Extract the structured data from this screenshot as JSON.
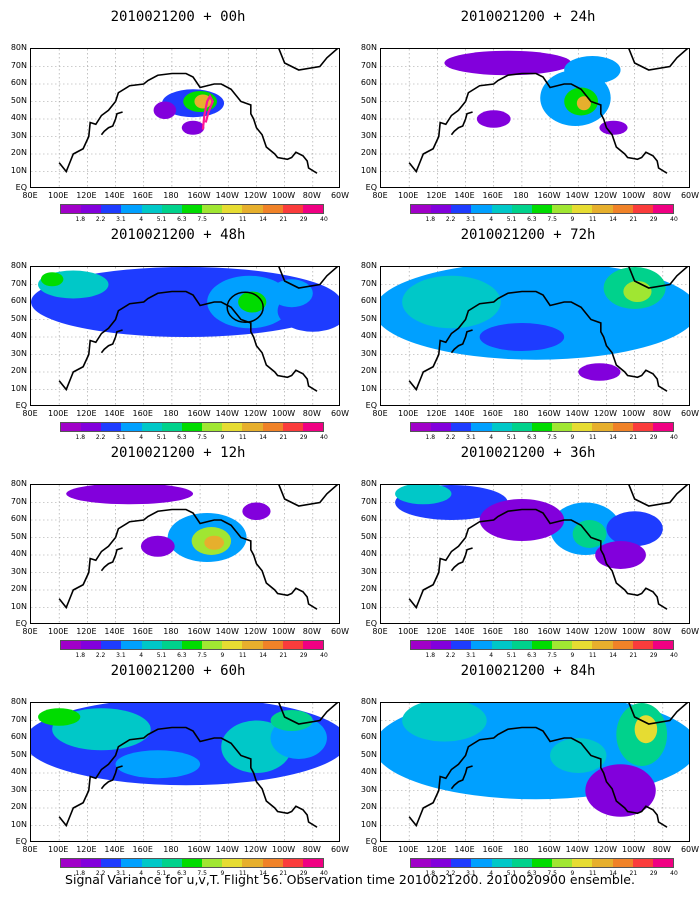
{
  "caption": "Signal Variance for u,v,T. Flight 56. Observation time 2010021200. 2010020900 ensemble.",
  "chart_data": {
    "type": "heatmap",
    "projection": "lat-lon",
    "x_ticks": [
      "80E",
      "100E",
      "120E",
      "140E",
      "160E",
      "180",
      "160W",
      "140W",
      "120W",
      "100W",
      "80W",
      "60W"
    ],
    "y_ticks": [
      "80N",
      "70N",
      "60N",
      "50N",
      "40N",
      "30N",
      "20N",
      "10N",
      "EQ"
    ],
    "xlim_deg_east": [
      80,
      300
    ],
    "ylim_deg_north": [
      0,
      80
    ],
    "colorbar_levels": [
      "1.8",
      "2.2",
      "3.1",
      "4",
      "5.1",
      "6.3",
      "7.5",
      "9",
      "11",
      "14",
      "21",
      "29",
      "40"
    ],
    "colors": [
      "#a000c8",
      "#8200dc",
      "#1e3cff",
      "#00a0ff",
      "#00c8c8",
      "#00d28c",
      "#00dc00",
      "#a0e632",
      "#e6dc32",
      "#e6af2d",
      "#f08228",
      "#fa3c3c",
      "#f00082"
    ],
    "panels": [
      {
        "title": "2010021200 + 00h",
        "lead_hours": 0,
        "blobs": [
          [
            195,
            49,
            22,
            8,
            2
          ],
          [
            200,
            50,
            12,
            6,
            6
          ],
          [
            202,
            50,
            6,
            4,
            9
          ],
          [
            175,
            45,
            8,
            5,
            1
          ],
          [
            195,
            35,
            8,
            4,
            1
          ]
        ],
        "track": true,
        "circle": false
      },
      {
        "title": "2010021200 + 12h",
        "lead_hours": 12,
        "blobs": [
          [
            205,
            50,
            28,
            14,
            3
          ],
          [
            208,
            48,
            14,
            8,
            7
          ],
          [
            210,
            47,
            7,
            4,
            9
          ],
          [
            150,
            75,
            45,
            6,
            1
          ],
          [
            170,
            45,
            12,
            6,
            1
          ],
          [
            240,
            65,
            10,
            5,
            1
          ]
        ],
        "track": false,
        "circle": false
      },
      {
        "title": "2010021200 + 24h",
        "lead_hours": 24,
        "blobs": [
          [
            218,
            52,
            25,
            16,
            3
          ],
          [
            222,
            50,
            12,
            8,
            6
          ],
          [
            224,
            49,
            5,
            4,
            9
          ],
          [
            170,
            72,
            45,
            7,
            1
          ],
          [
            230,
            68,
            20,
            8,
            3
          ],
          [
            160,
            40,
            12,
            5,
            1
          ],
          [
            245,
            35,
            10,
            4,
            1
          ]
        ],
        "track": false,
        "circle": false
      },
      {
        "title": "2010021200 + 36h",
        "lead_hours": 36,
        "blobs": [
          [
            225,
            55,
            25,
            15,
            3
          ],
          [
            228,
            52,
            12,
            8,
            5
          ],
          [
            130,
            70,
            40,
            10,
            2
          ],
          [
            110,
            75,
            20,
            6,
            4
          ],
          [
            180,
            60,
            30,
            12,
            1
          ],
          [
            260,
            55,
            20,
            10,
            2
          ],
          [
            250,
            40,
            18,
            8,
            1
          ]
        ],
        "track": false,
        "circle": false
      },
      {
        "title": "2010021200 + 48h",
        "lead_hours": 48,
        "blobs": [
          [
            190,
            60,
            110,
            20,
            2
          ],
          [
            235,
            60,
            30,
            15,
            3
          ],
          [
            237,
            60,
            10,
            6,
            6
          ],
          [
            110,
            70,
            25,
            8,
            4
          ],
          [
            95,
            73,
            8,
            4,
            6
          ],
          [
            280,
            55,
            25,
            12,
            2
          ],
          [
            265,
            65,
            15,
            8,
            3
          ]
        ],
        "track": false,
        "circle": true
      },
      {
        "title": "2010021200 + 60h",
        "lead_hours": 60,
        "blobs": [
          [
            190,
            58,
            115,
            25,
            2
          ],
          [
            130,
            65,
            35,
            12,
            4
          ],
          [
            100,
            72,
            15,
            5,
            6
          ],
          [
            240,
            55,
            25,
            15,
            4
          ],
          [
            270,
            60,
            20,
            12,
            3
          ],
          [
            170,
            45,
            30,
            8,
            3
          ],
          [
            265,
            70,
            15,
            6,
            5
          ]
        ],
        "track": false,
        "circle": false
      },
      {
        "title": "2010021200 + 72h",
        "lead_hours": 72,
        "blobs": [
          [
            190,
            55,
            115,
            28,
            3
          ],
          [
            260,
            68,
            22,
            12,
            5
          ],
          [
            262,
            66,
            10,
            6,
            7
          ],
          [
            130,
            60,
            35,
            15,
            4
          ],
          [
            210,
            45,
            40,
            10,
            3
          ],
          [
            180,
            40,
            30,
            8,
            2
          ],
          [
            235,
            20,
            15,
            5,
            1
          ]
        ],
        "track": false,
        "circle": false
      },
      {
        "title": "2010021200 + 84h",
        "lead_hours": 84,
        "blobs": [
          [
            190,
            55,
            115,
            30,
            3
          ],
          [
            265,
            62,
            18,
            18,
            5
          ],
          [
            268,
            65,
            8,
            8,
            8
          ],
          [
            125,
            70,
            30,
            12,
            4
          ],
          [
            170,
            45,
            50,
            12,
            3
          ],
          [
            220,
            50,
            20,
            10,
            4
          ],
          [
            250,
            30,
            25,
            15,
            1
          ]
        ],
        "track": false,
        "circle": false
      }
    ]
  }
}
